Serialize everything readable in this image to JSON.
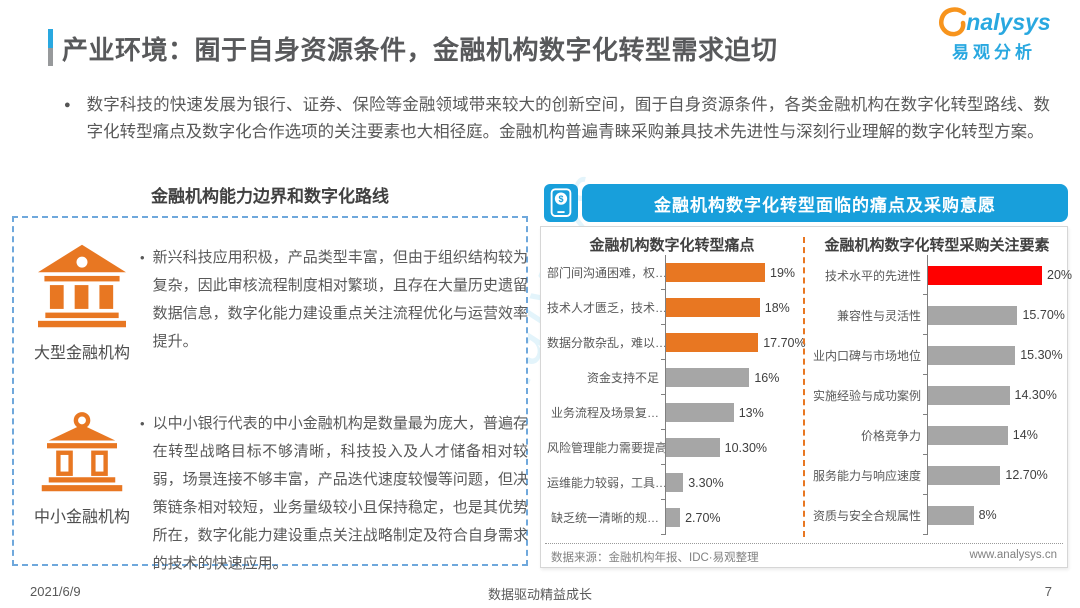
{
  "header": {
    "title": "产业环境：囿于自身资源条件，金融机构数字化转型需求迫切",
    "logo": {
      "brand": "nalysys",
      "brand_cn": "易观分析"
    }
  },
  "intro": {
    "bullet": "●",
    "text": "数字科技的快速发展为银行、证券、保险等金融领域带来较大的创新空间，囿于自身资源条件，各类金融机构在数字化转型路线、数字化转型痛点及数字化合作选项的关注要素也大相径庭。金融机构普遍青睐采购兼具技术先进性与深刻行业理解的数字化转型方案。"
  },
  "left_panel": {
    "title": "金融机构能力边界和数字化路线",
    "items": [
      {
        "label": "大型金融机构",
        "icon": "bank-icon",
        "bullet": "•",
        "text": "新兴科技应用积极，产品类型丰富，但由于组织结构较为复杂，因此审核流程制度相对繁琐，且存在大量历史遗留数据信息，数字化能力建设重点关注流程优化与运营效率提升。"
      },
      {
        "label": "中小金融机构",
        "icon": "bank-outline-icon",
        "bullet": "•",
        "text": "以中小银行代表的中小金融机构是数量最为庞大，普遍存在转型战略目标不够清晰，科技投入及人才储备相对较弱，场景连接不够丰富，产品迭代速度较慢等问题，但决策链条相对较短，业务量级较小且保持稳定，也是其优势所在，数字化能力建设重点关注战略制定及符合自身需求的技术的快速应用。"
      }
    ]
  },
  "right_panel": {
    "icon": "mobile-payment-icon",
    "title": "金融机构数字化转型面临的痛点及采购意愿",
    "source_note": "数据来源：金融机构年报、IDC·易观整理",
    "website": "www.analysys.cn"
  },
  "chart_data": [
    {
      "type": "bar",
      "orientation": "horizontal",
      "title": "金融机构数字化转型痛点",
      "categories": [
        "部门间沟通困难，权…",
        "技术人才匮乏，技术…",
        "数据分散杂乱，难以…",
        "资金支持不足",
        "业务流程及场景复…",
        "风险管理能力需要提高",
        "运维能力较弱，工具…",
        "缺乏统一清晰的规…"
      ],
      "values": [
        19,
        18,
        17.7,
        16,
        13,
        10.3,
        3.3,
        2.7
      ],
      "value_labels": [
        "19%",
        "18%",
        "17.70%",
        "16%",
        "13%",
        "10.30%",
        "3.30%",
        "2.70%"
      ],
      "bar_colors": [
        "#E87722",
        "#E87722",
        "#E87722",
        "#A6A6A6",
        "#A6A6A6",
        "#A6A6A6",
        "#A6A6A6",
        "#A6A6A6"
      ],
      "xlim": [
        0,
        19
      ],
      "grid": false,
      "legend": false
    },
    {
      "type": "bar",
      "orientation": "horizontal",
      "title": "金融机构数字化转型采购关注要素",
      "categories": [
        "技术水平的先进性",
        "兼容性与灵活性",
        "业内口碑与市场地位",
        "实施经验与成功案例",
        "价格竞争力",
        "服务能力与响应速度",
        "资质与安全合规属性"
      ],
      "values": [
        20,
        15.7,
        15.3,
        14.3,
        14,
        12.7,
        8
      ],
      "value_labels": [
        "20%",
        "15.70%",
        "15.30%",
        "14.30%",
        "14%",
        "12.70%",
        "8%"
      ],
      "bar_colors": [
        "#FF0000",
        "#A6A6A6",
        "#A6A6A6",
        "#A6A6A6",
        "#A6A6A6",
        "#A6A6A6",
        "#A6A6A6"
      ],
      "xlim": [
        0,
        20
      ],
      "grid": false,
      "legend": false
    }
  ],
  "watermark": "analysys",
  "footer": {
    "date": "2021/6/9",
    "slogan": "数据驱动精益成长",
    "page": "7"
  },
  "colors": {
    "accent_blue": "#189FDB",
    "logo_blue": "#29A8E0",
    "orange": "#E87722",
    "red": "#FF0000",
    "gray_bar": "#A6A6A6"
  }
}
